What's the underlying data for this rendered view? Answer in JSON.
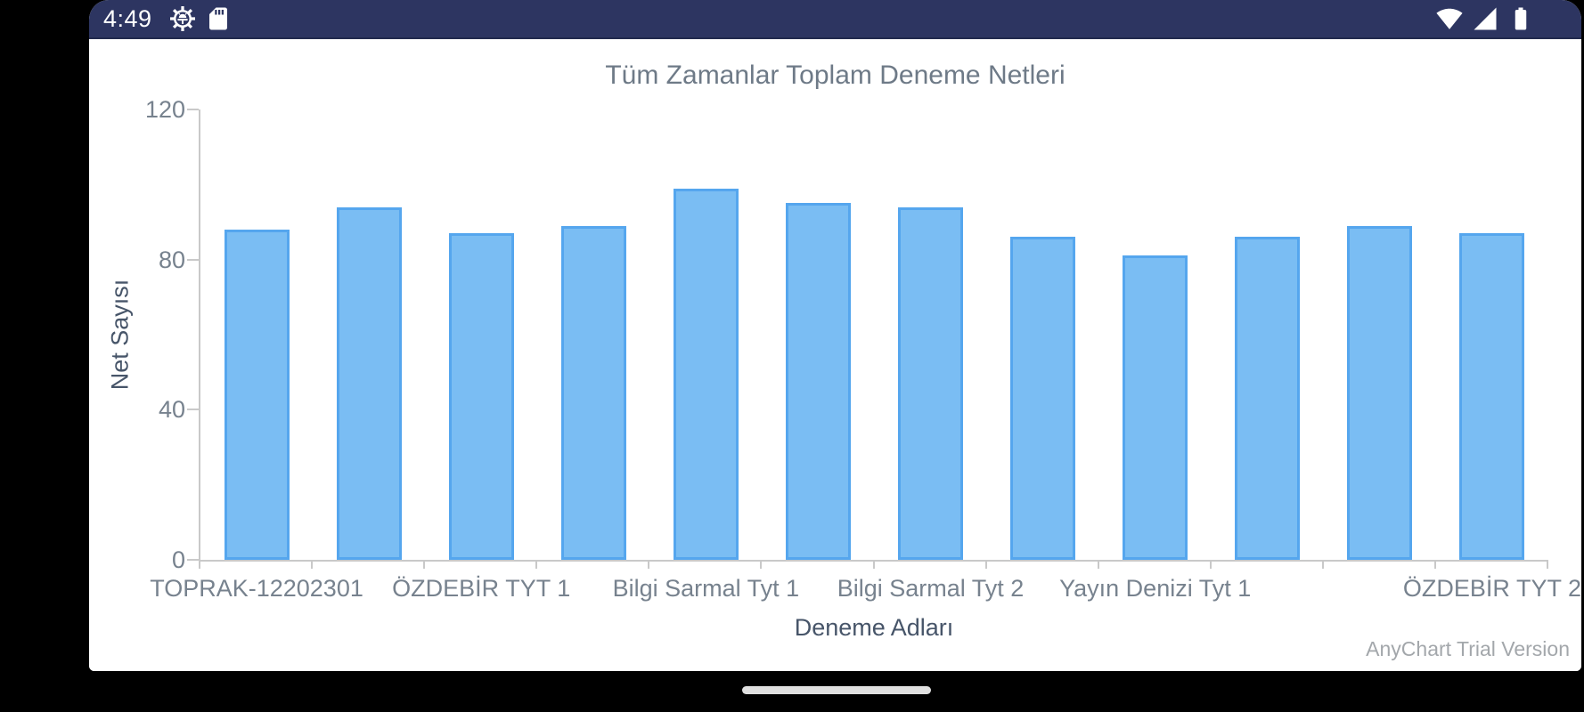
{
  "status_bar": {
    "time": "4:49",
    "bg_color": "#2d3561",
    "icons_left": [
      "android-setup-gear-icon",
      "sd-card-icon"
    ],
    "icons_right": [
      "wifi-icon",
      "cell-signal-icon",
      "battery-icon"
    ]
  },
  "chart_data": {
    "type": "bar",
    "title": "Tüm Zamanlar Toplam Deneme Netleri",
    "xlabel": "Deneme Adları",
    "ylabel": "Net Sayısı",
    "ylim": [
      0,
      120
    ],
    "yticks": [
      0,
      40,
      80,
      120
    ],
    "grid": false,
    "legend": false,
    "categories": [
      "TOPRAK-12202301",
      "",
      "ÖZDEBİR TYT 1",
      "",
      "Bilgi Sarmal Tyt 1",
      "",
      "Bilgi Sarmal Tyt 2",
      "",
      "Yayın Denizi Tyt 1",
      "",
      "",
      "ÖZDEBİR TYT 2"
    ],
    "values": [
      88,
      94,
      87,
      89,
      99,
      95,
      94,
      86,
      81,
      86,
      89,
      87
    ],
    "bar_fill": "#7abdf3",
    "bar_stroke": "#55a6ee",
    "axis_color": "#c9c9c9"
  },
  "watermark": "AnyChart Trial Version",
  "nav_bar": {
    "pill_color": "#e0e0e0"
  }
}
